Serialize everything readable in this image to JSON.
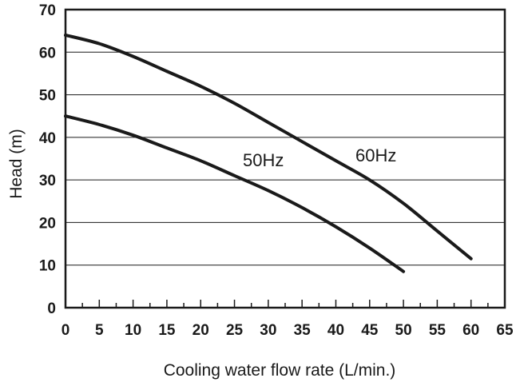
{
  "chart_data": {
    "type": "line",
    "title": "",
    "xlabel": "Cooling water flow rate (L/min.)",
    "ylabel": "Head (m)",
    "xlim": [
      0,
      65
    ],
    "ylim": [
      0,
      70
    ],
    "xticks": [
      "0",
      "5",
      "10",
      "15",
      "20",
      "25",
      "30",
      "35",
      "40",
      "45",
      "50",
      "55",
      "60",
      "65"
    ],
    "yticks": [
      "0",
      "10",
      "20",
      "30",
      "40",
      "50",
      "60",
      "70"
    ],
    "grid": "horizontal",
    "series": [
      {
        "name": "50Hz",
        "x": [
          0,
          5,
          10,
          15,
          20,
          25,
          30,
          35,
          40,
          45,
          50
        ],
        "y": [
          45,
          43,
          40.5,
          37.5,
          34.5,
          31,
          27.5,
          23.5,
          19,
          14,
          8.5
        ]
      },
      {
        "name": "60Hz",
        "x": [
          0,
          5,
          10,
          15,
          20,
          25,
          30,
          35,
          40,
          45,
          50,
          55,
          60
        ],
        "y": [
          64,
          62,
          59,
          55.5,
          52,
          48,
          43.5,
          39,
          34.5,
          30,
          24.5,
          18,
          11.5
        ]
      }
    ]
  }
}
